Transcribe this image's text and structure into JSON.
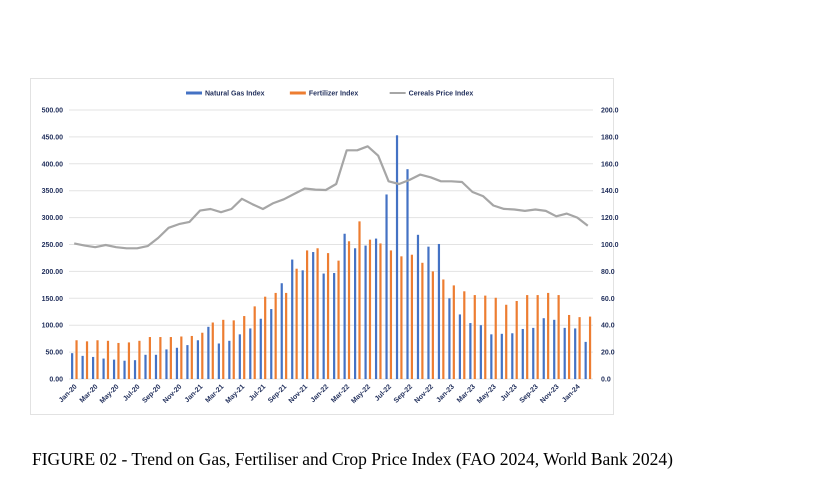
{
  "chart_data": {
    "type": "bar+line",
    "caption": "FIGURE 02 - Trend on Gas, Fertiliser and Crop Price Index (FAO 2024, World Bank 2024)",
    "legend_position": "top",
    "grid": true,
    "categories": [
      "Jan-20",
      "Feb-20",
      "Mar-20",
      "Apr-20",
      "May-20",
      "Jun-20",
      "Jul-20",
      "Aug-20",
      "Sep-20",
      "Oct-20",
      "Nov-20",
      "Dec-20",
      "Jan-21",
      "Feb-21",
      "Mar-21",
      "Apr-21",
      "May-21",
      "Jun-21",
      "Jul-21",
      "Aug-21",
      "Sep-21",
      "Oct-21",
      "Nov-21",
      "Dec-21",
      "Jan-22",
      "Feb-22",
      "Mar-22",
      "Apr-22",
      "May-22",
      "Jun-22",
      "Jul-22",
      "Aug-22",
      "Sep-22",
      "Oct-22",
      "Nov-22",
      "Dec-22",
      "Jan-23",
      "Feb-23",
      "Mar-23",
      "Apr-23",
      "May-23",
      "Jun-23",
      "Jul-23",
      "Aug-23",
      "Sep-23",
      "Oct-23",
      "Nov-23",
      "Dec-23",
      "Jan-24",
      "Feb-24"
    ],
    "x_tick_labels": [
      "Jan-20",
      "Mar-20",
      "May-20",
      "Jul-20",
      "Sep-20",
      "Nov-20",
      "Jan-21",
      "Mar-21",
      "May-21",
      "Jul-21",
      "Sep-21",
      "Nov-21",
      "Jan-22",
      "Mar-22",
      "May-22",
      "Jul-22",
      "Sep-22",
      "Nov-22",
      "Jan-23",
      "Mar-23",
      "May-23",
      "Jul-23",
      "Sep-23",
      "Nov-23",
      "Jan-24"
    ],
    "y_left": {
      "ylim": [
        0,
        500
      ],
      "ticks": [
        "0.00",
        "50.00",
        "100.00",
        "150.00",
        "200.00",
        "250.00",
        "300.00",
        "350.00",
        "400.00",
        "450.00",
        "500.00"
      ]
    },
    "y_right": {
      "ylim": [
        0,
        200
      ],
      "ticks": [
        "0.0",
        "20.0",
        "40.0",
        "60.0",
        "80.0",
        "100.0",
        "120.0",
        "140.0",
        "160.0",
        "180.0",
        "200.0"
      ]
    },
    "series": [
      {
        "name": "Natural Gas Index",
        "type": "bar",
        "axis": "left",
        "color": "#4472c4",
        "values": [
          48,
          43,
          41,
          38,
          36,
          34,
          35,
          45,
          45,
          55,
          58,
          63,
          72,
          97,
          66,
          71,
          83,
          94,
          112,
          130,
          178,
          222,
          202,
          236,
          196,
          197,
          270,
          243,
          248,
          261,
          343,
          453,
          390,
          268,
          246,
          251,
          150,
          120,
          104,
          100,
          83,
          84,
          85,
          93,
          95,
          113,
          110,
          95,
          94,
          69
        ]
      },
      {
        "name": "Fertilizer Index",
        "type": "bar",
        "axis": "left",
        "color": "#ed7d31",
        "values": [
          72,
          70,
          72,
          71,
          67,
          68,
          71,
          78,
          78,
          78,
          79,
          80,
          86,
          105,
          110,
          109,
          117,
          135,
          153,
          160,
          160,
          205,
          239,
          243,
          234,
          220,
          256,
          293,
          259,
          252,
          239,
          228,
          231,
          216,
          200,
          185,
          174,
          163,
          156,
          155,
          151,
          138,
          145,
          156,
          156,
          160,
          156,
          119,
          115,
          116
        ]
      },
      {
        "name": "Cereals Price Index",
        "type": "line",
        "axis": "right",
        "color": "#a6a6a6",
        "values": [
          100.8,
          99.2,
          98,
          99.6,
          98,
          97.2,
          97.2,
          98.8,
          104.8,
          112.4,
          115.2,
          116.8,
          125.2,
          126.4,
          124,
          126.4,
          134,
          130,
          126.4,
          130.8,
          133.6,
          137.6,
          141.6,
          140.8,
          140.5,
          145,
          170,
          170,
          173,
          166,
          147,
          145,
          148,
          152,
          150,
          147,
          147,
          146.5,
          139,
          136,
          129,
          126.5,
          126,
          125,
          126,
          125,
          121,
          123,
          120,
          114
        ]
      }
    ]
  }
}
